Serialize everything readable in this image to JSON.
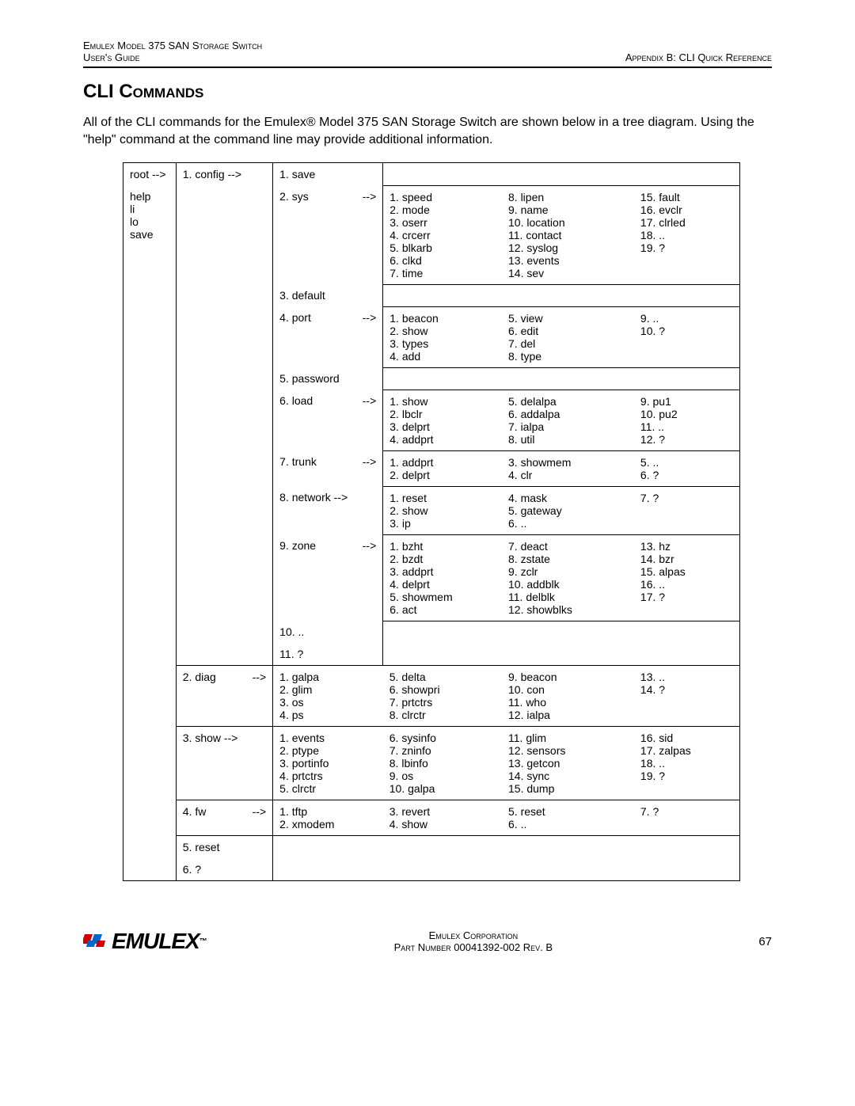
{
  "header": {
    "left_line1": "Emulex Model 375 SAN Storage Switch",
    "left_line2": "User's Guide",
    "right": "Appendix B: CLI Quick Reference"
  },
  "section_title": "CLI Commands",
  "intro": "All of the CLI commands for the Emulex® Model 375 SAN Storage Switch are shown below in a tree diagram. Using the \"help\" command at the command line may provide additional information.",
  "root_label": "root -->",
  "root_cmds": [
    "help",
    "li",
    "lo",
    "save"
  ],
  "lvl1": {
    "config": "1. config  -->",
    "diag": "2. diag",
    "show": "3. show  -->",
    "fw": "4. fw",
    "reset": "5. reset",
    "q": "6. ?"
  },
  "arrow": "-->",
  "config_rows": [
    {
      "cmd": "1. save",
      "cols": null,
      "hasArrow": false
    },
    {
      "cmd": "2. sys",
      "hasArrow": true,
      "cols": [
        [
          "1. speed",
          "2. mode",
          "3. oserr",
          "4. crcerr",
          "5. blkarb",
          "6. clkd",
          "7. time"
        ],
        [
          "8. lipen",
          "9. name",
          "10. location",
          "11. contact",
          "12. syslog",
          "13. events",
          "14. sev"
        ],
        [
          "15. fault",
          "16. evclr",
          "17. clrled",
          "18. ..",
          "19. ?"
        ]
      ]
    },
    {
      "cmd": "3. default",
      "cols": null,
      "hasArrow": false
    },
    {
      "cmd": "4. port",
      "hasArrow": true,
      "cols": [
        [
          "1. beacon",
          "2. show",
          "3. types",
          "4. add"
        ],
        [
          "5. view",
          "6. edit",
          "7. del",
          "8. type"
        ],
        [
          "9. ..",
          "10. ?"
        ]
      ]
    },
    {
      "cmd": "5. password",
      "cols": null,
      "hasArrow": false
    },
    {
      "cmd": "6. load",
      "hasArrow": true,
      "cols": [
        [
          "1. show",
          "2. lbclr",
          "3. delprt",
          "4. addprt"
        ],
        [
          "5. delalpa",
          "6. addalpa",
          "7. ialpa",
          "8. util"
        ],
        [
          "9. pu1",
          "10. pu2",
          "11. ..",
          "12. ?"
        ]
      ]
    },
    {
      "cmd": "7. trunk",
      "hasArrow": true,
      "cols": [
        [
          "1. addprt",
          "2. delprt"
        ],
        [
          "3. showmem",
          "4. clr"
        ],
        [
          "5. ..",
          "6. ?"
        ]
      ]
    },
    {
      "cmd": "8. network -->",
      "hasArrow": false,
      "cols": [
        [
          "1. reset",
          "2. show",
          "3. ip"
        ],
        [
          "4. mask",
          "5. gateway",
          "6. .."
        ],
        [
          "7. ?"
        ]
      ]
    },
    {
      "cmd": "9. zone",
      "hasArrow": true,
      "cols": [
        [
          "1. bzht",
          "2. bzdt",
          "3. addprt",
          "4. delprt",
          "5. showmem",
          "6. act"
        ],
        [
          "7. deact",
          "8. zstate",
          "9. zclr",
          "10. addblk",
          "11. delblk",
          "12. showblks"
        ],
        [
          "13. hz",
          "14. bzr",
          "15. alpas",
          "16. ..",
          "17. ?"
        ]
      ]
    },
    {
      "cmd": "10. ..",
      "cols": null,
      "hasArrow": false
    },
    {
      "cmd": "11. ?",
      "cols": null,
      "hasArrow": false
    }
  ],
  "diag_cols": [
    [
      "1. galpa",
      "2. glim",
      "3. os",
      "4. ps"
    ],
    [
      "5. delta",
      "6. showpri",
      "7. prtctrs",
      "8. clrctr"
    ],
    [
      "9. beacon",
      "10. con",
      "11. who",
      "12. ialpa"
    ],
    [
      "13. ..",
      "14. ?"
    ]
  ],
  "show_cols": [
    [
      "1. events",
      "2. ptype",
      "3. portinfo",
      "4. prtctrs",
      "5. clrctr"
    ],
    [
      "6. sysinfo",
      "7. zninfo",
      "8. lbinfo",
      "9. os",
      "10. galpa"
    ],
    [
      "11. glim",
      "12. sensors",
      "13. getcon",
      "14. sync",
      "15. dump"
    ],
    [
      "16. sid",
      "17. zalpas",
      "18. ..",
      "19. ?"
    ]
  ],
  "fw_cols": [
    [
      "1. tftp",
      "2. xmodem"
    ],
    [
      "3. revert",
      "4. show"
    ],
    [
      "5. reset",
      "6. .."
    ],
    [
      "7. ?"
    ]
  ],
  "footer": {
    "logo_text": "EMULEX",
    "center_line1": "Emulex Corporation",
    "center_line2": "Part Number 00041392-002 Rev. B",
    "page_no": "67"
  }
}
